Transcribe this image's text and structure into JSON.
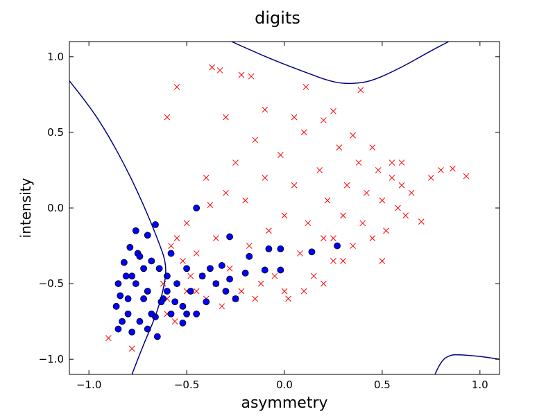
{
  "chart_data": {
    "type": "scatter",
    "title": "digits",
    "xlabel": "asymmetry",
    "ylabel": "intensity",
    "xlim": [
      -1.1,
      1.1
    ],
    "ylim": [
      -1.1,
      1.1
    ],
    "x_ticks": [
      -1.0,
      -0.5,
      0.0,
      0.5,
      1.0
    ],
    "y_ticks": [
      -1.0,
      -0.5,
      0.0,
      0.5,
      1.0
    ],
    "x_tick_labels": [
      "−1.0",
      "−0.5",
      "0.0",
      "0.5",
      "1.0"
    ],
    "y_tick_labels": [
      "−1.0",
      "−0.5",
      "0.0",
      "0.5",
      "1.0"
    ],
    "grid": false,
    "series": [
      {
        "marker": "x",
        "color": "#ff0000",
        "points": [
          [
            -0.9,
            -0.86
          ],
          [
            -0.78,
            -0.93
          ],
          [
            -0.6,
            -0.6
          ],
          [
            -0.55,
            -0.2
          ],
          [
            -0.5,
            -0.1
          ],
          [
            -0.45,
            -0.3
          ],
          [
            -0.42,
            -0.45
          ],
          [
            -0.4,
            -0.6
          ],
          [
            -0.38,
            0.02
          ],
          [
            -0.35,
            -0.2
          ],
          [
            -0.32,
            -0.65
          ],
          [
            -0.3,
            0.1
          ],
          [
            -0.28,
            -0.4
          ],
          [
            -0.25,
            0.3
          ],
          [
            -0.22,
            -0.55
          ],
          [
            -0.2,
            0.05
          ],
          [
            -0.18,
            -0.25
          ],
          [
            -0.15,
            0.45
          ],
          [
            -0.12,
            -0.5
          ],
          [
            -0.1,
            0.2
          ],
          [
            -0.08,
            -0.15
          ],
          [
            -0.05,
            -0.45
          ],
          [
            -0.02,
            0.35
          ],
          [
            0.0,
            -0.05
          ],
          [
            0.02,
            -0.6
          ],
          [
            0.05,
            0.15
          ],
          [
            0.08,
            -0.3
          ],
          [
            0.1,
            0.5
          ],
          [
            0.12,
            -0.1
          ],
          [
            0.15,
            -0.45
          ],
          [
            0.18,
            0.25
          ],
          [
            0.2,
            -0.2
          ],
          [
            0.22,
            0.05
          ],
          [
            0.25,
            -0.35
          ],
          [
            0.28,
            0.4
          ],
          [
            0.3,
            -0.05
          ],
          [
            0.32,
            0.15
          ],
          [
            0.35,
            -0.25
          ],
          [
            0.38,
            0.3
          ],
          [
            0.4,
            -0.1
          ],
          [
            0.42,
            0.1
          ],
          [
            0.45,
            -0.2
          ],
          [
            0.48,
            0.25
          ],
          [
            0.5,
            0.05
          ],
          [
            0.52,
            -0.15
          ],
          [
            0.55,
            0.2
          ],
          [
            0.58,
            0.0
          ],
          [
            0.6,
            0.15
          ],
          [
            0.62,
            -0.05
          ],
          [
            0.65,
            0.1
          ],
          [
            0.7,
            -0.09
          ],
          [
            0.75,
            0.2
          ],
          [
            0.8,
            0.25
          ],
          [
            0.86,
            0.26
          ],
          [
            0.93,
            0.21
          ],
          [
            -0.37,
            0.93
          ],
          [
            -0.33,
            0.91
          ],
          [
            -0.22,
            0.88
          ],
          [
            -0.17,
            0.87
          ],
          [
            0.11,
            0.8
          ],
          [
            0.25,
            0.64
          ],
          [
            0.39,
            0.78
          ],
          [
            -0.6,
            0.6
          ],
          [
            -0.55,
            0.8
          ],
          [
            -0.4,
            0.2
          ],
          [
            -0.3,
            0.6
          ],
          [
            -0.1,
            0.65
          ],
          [
            0.05,
            0.6
          ],
          [
            0.2,
            0.58
          ],
          [
            0.35,
            0.48
          ],
          [
            0.45,
            0.4
          ],
          [
            0.55,
            0.3
          ],
          [
            0.6,
            0.3
          ],
          [
            -0.45,
            -0.55
          ],
          [
            -0.35,
            -0.5
          ],
          [
            -0.25,
            -0.6
          ],
          [
            -0.15,
            -0.6
          ],
          [
            0.0,
            -0.55
          ],
          [
            0.1,
            -0.55
          ],
          [
            0.2,
            -0.5
          ],
          [
            0.3,
            -0.35
          ],
          [
            0.5,
            -0.35
          ],
          [
            0.25,
            -0.2
          ],
          [
            -0.5,
            -0.55
          ],
          [
            -0.48,
            -0.45
          ],
          [
            -0.52,
            -0.35
          ],
          [
            -0.58,
            -0.25
          ],
          [
            -0.62,
            -0.5
          ],
          [
            -0.6,
            -0.7
          ],
          [
            -0.56,
            -0.75
          ]
        ]
      },
      {
        "marker": "o",
        "color": "#0000ff",
        "points": [
          [
            -0.45,
            0.0
          ],
          [
            -0.76,
            -0.15
          ],
          [
            -0.79,
            -0.26
          ],
          [
            -0.82,
            -0.36
          ],
          [
            -0.85,
            -0.5
          ],
          [
            -0.86,
            -0.65
          ],
          [
            -0.85,
            -0.8
          ],
          [
            -0.83,
            -0.75
          ],
          [
            -0.8,
            -0.6
          ],
          [
            -0.78,
            -0.45
          ],
          [
            -0.75,
            -0.3
          ],
          [
            -0.72,
            -0.4
          ],
          [
            -0.7,
            -0.55
          ],
          [
            -0.68,
            -0.7
          ],
          [
            -0.65,
            -0.85
          ],
          [
            -0.62,
            -0.6
          ],
          [
            -0.6,
            -0.45
          ],
          [
            -0.58,
            -0.3
          ],
          [
            -0.55,
            -0.5
          ],
          [
            -0.52,
            -0.65
          ],
          [
            -0.5,
            -0.4
          ],
          [
            -0.48,
            -0.55
          ],
          [
            -0.45,
            -0.7
          ],
          [
            -0.42,
            -0.45
          ],
          [
            -0.4,
            -0.62
          ],
          [
            -0.38,
            -0.4
          ],
          [
            -0.35,
            -0.5
          ],
          [
            -0.32,
            -0.38
          ],
          [
            -0.3,
            -0.55
          ],
          [
            -0.28,
            -0.47
          ],
          [
            -0.25,
            -0.6
          ],
          [
            -0.2,
            -0.43
          ],
          [
            -0.18,
            -0.32
          ],
          [
            -0.1,
            -0.41
          ],
          [
            -0.08,
            -0.27
          ],
          [
            -0.02,
            -0.41
          ],
          [
            -0.02,
            -0.27
          ],
          [
            -0.28,
            -0.19
          ],
          [
            0.14,
            -0.29
          ],
          [
            0.27,
            -0.25
          ],
          [
            -0.66,
            -0.11
          ],
          [
            -0.7,
            -0.18
          ],
          [
            -0.74,
            -0.32
          ],
          [
            -0.76,
            -0.5
          ],
          [
            -0.8,
            -0.7
          ],
          [
            -0.78,
            -0.82
          ],
          [
            -0.7,
            -0.8
          ],
          [
            -0.66,
            -0.72
          ],
          [
            -0.63,
            -0.62
          ],
          [
            -0.58,
            -0.7
          ],
          [
            -0.56,
            -0.62
          ],
          [
            -0.52,
            -0.76
          ],
          [
            -0.5,
            -0.7
          ],
          [
            -0.6,
            -0.55
          ],
          [
            -0.64,
            -0.4
          ],
          [
            -0.68,
            -0.35
          ],
          [
            -0.72,
            -0.6
          ],
          [
            -0.74,
            -0.75
          ],
          [
            -0.84,
            -0.58
          ],
          [
            -0.81,
            -0.45
          ]
        ]
      }
    ],
    "decision_boundary": {
      "color": "#000080",
      "curves": [
        [
          [
            -1.1,
            0.84
          ],
          [
            -1.0,
            0.68
          ],
          [
            -0.9,
            0.48
          ],
          [
            -0.8,
            0.24
          ],
          [
            -0.72,
            0.02
          ],
          [
            -0.65,
            -0.2
          ],
          [
            -0.6,
            -0.38
          ],
          [
            -0.62,
            -0.55
          ],
          [
            -0.66,
            -0.72
          ],
          [
            -0.72,
            -0.9
          ],
          [
            -0.78,
            -1.1
          ]
        ],
        [
          [
            -0.27,
            1.1
          ],
          [
            -0.1,
            1.0
          ],
          [
            0.1,
            0.9
          ],
          [
            0.25,
            0.83
          ],
          [
            0.35,
            0.82
          ],
          [
            0.45,
            0.84
          ],
          [
            0.6,
            0.93
          ],
          [
            0.75,
            1.04
          ],
          [
            0.84,
            1.1
          ]
        ],
        [
          [
            0.77,
            -1.1
          ],
          [
            0.8,
            -1.01
          ],
          [
            0.85,
            -0.97
          ],
          [
            0.9,
            -0.97
          ],
          [
            1.0,
            -0.98
          ],
          [
            1.1,
            -1.0
          ]
        ]
      ]
    }
  }
}
